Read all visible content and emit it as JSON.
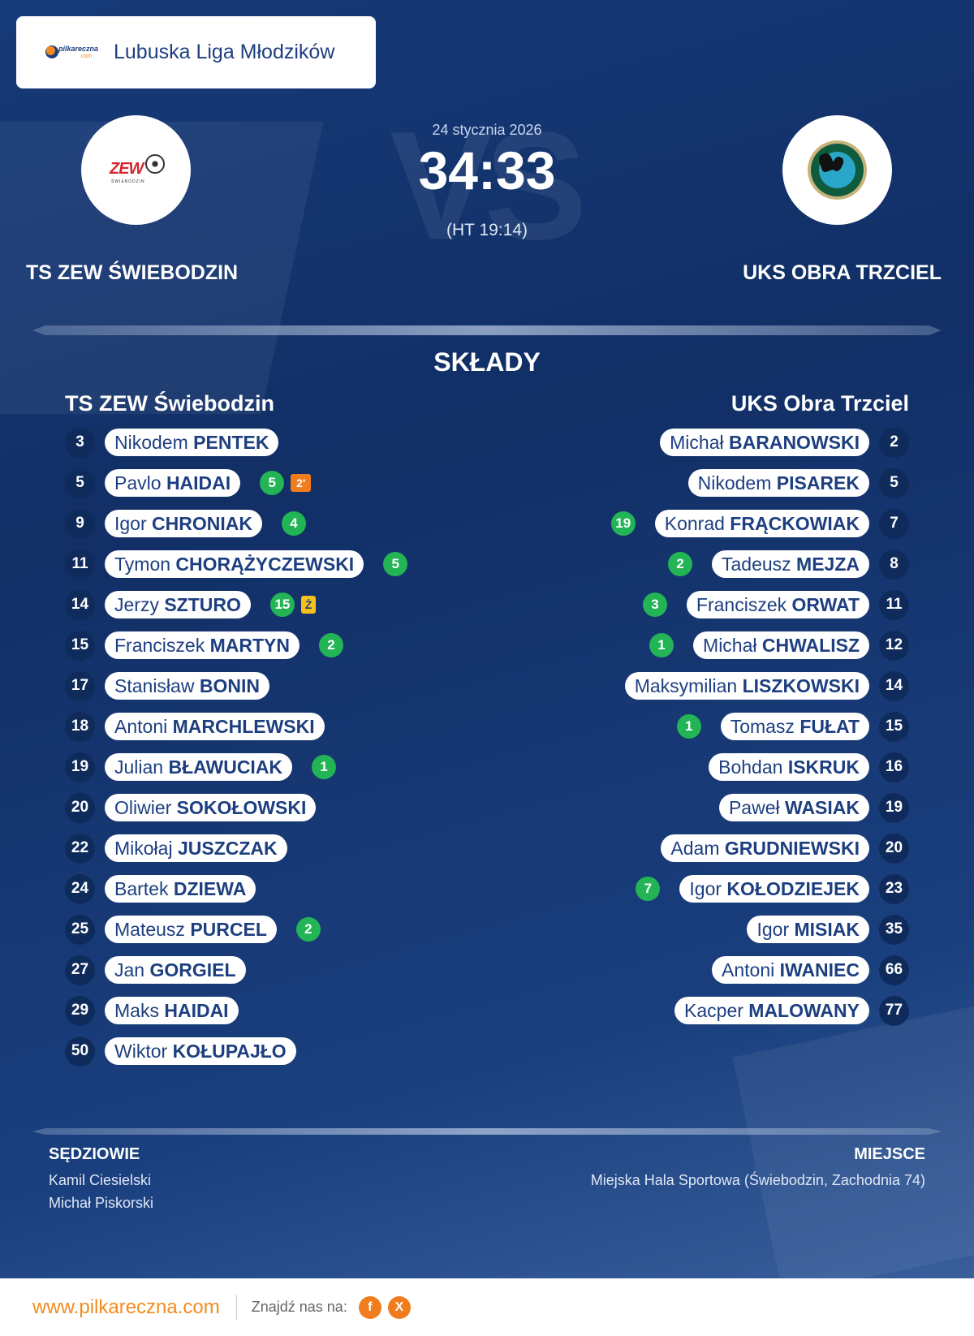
{
  "league": {
    "name": "Lubuska Liga Młodzików",
    "logo_text": "pilkareczna",
    "logo_sub": ".com"
  },
  "match": {
    "date": "24 stycznia 2026",
    "score": "34:33",
    "halftime": "(HT 19:14)",
    "vs_text": "VS"
  },
  "home": {
    "name": "TS ZEW ŚWIEBODZIN",
    "lineup_title": "TS ZEW Świebodzin",
    "crest_text": "ZEW",
    "crest_sub": "ŚWIEBODZIN",
    "players": [
      {
        "num": "3",
        "first": "Nikodem",
        "last": "PENTEK",
        "goals": "",
        "pen": ""
      },
      {
        "num": "5",
        "first": "Pavlo",
        "last": "HAIDAI",
        "goals": "5",
        "pen": "2'"
      },
      {
        "num": "9",
        "first": "Igor",
        "last": "CHRONIAK",
        "goals": "4",
        "pen": ""
      },
      {
        "num": "11",
        "first": "Tymon",
        "last": "CHORĄŻYCZEWSKI",
        "goals": "5",
        "pen": ""
      },
      {
        "num": "14",
        "first": "Jerzy",
        "last": "SZTURO",
        "goals": "15",
        "pen": "Ż"
      },
      {
        "num": "15",
        "first": "Franciszek",
        "last": "MARTYN",
        "goals": "2",
        "pen": ""
      },
      {
        "num": "17",
        "first": "Stanisław",
        "last": "BONIN",
        "goals": "",
        "pen": ""
      },
      {
        "num": "18",
        "first": "Antoni",
        "last": "MARCHLEWSKI",
        "goals": "",
        "pen": ""
      },
      {
        "num": "19",
        "first": "Julian",
        "last": "BŁAWUCIAK",
        "goals": "1",
        "pen": ""
      },
      {
        "num": "20",
        "first": "Oliwier",
        "last": "SOKOŁOWSKI",
        "goals": "",
        "pen": ""
      },
      {
        "num": "22",
        "first": "Mikołaj",
        "last": "JUSZCZAK",
        "goals": "",
        "pen": ""
      },
      {
        "num": "24",
        "first": "Bartek",
        "last": "DZIEWA",
        "goals": "",
        "pen": ""
      },
      {
        "num": "25",
        "first": "Mateusz",
        "last": "PURCEL",
        "goals": "2",
        "pen": ""
      },
      {
        "num": "27",
        "first": "Jan",
        "last": "GORGIEL",
        "goals": "",
        "pen": ""
      },
      {
        "num": "29",
        "first": "Maks",
        "last": "HAIDAI",
        "goals": "",
        "pen": ""
      },
      {
        "num": "50",
        "first": "Wiktor",
        "last": "KOŁUPAJŁO",
        "goals": "",
        "pen": ""
      }
    ]
  },
  "away": {
    "name": "UKS OBRA TRZCIEL",
    "lineup_title": "UKS Obra Trzciel",
    "players": [
      {
        "num": "2",
        "first": "Michał",
        "last": "BARANOWSKI",
        "goals": ""
      },
      {
        "num": "5",
        "first": "Nikodem",
        "last": "PISAREK",
        "goals": ""
      },
      {
        "num": "7",
        "first": "Konrad",
        "last": "FRĄCKOWIAK",
        "goals": "19"
      },
      {
        "num": "8",
        "first": "Tadeusz",
        "last": "MEJZA",
        "goals": "2"
      },
      {
        "num": "11",
        "first": "Franciszek",
        "last": "ORWAT",
        "goals": "3"
      },
      {
        "num": "12",
        "first": "Michał",
        "last": "CHWALISZ",
        "goals": "1"
      },
      {
        "num": "14",
        "first": "Maksymilian",
        "last": "LISZKOWSKI",
        "goals": ""
      },
      {
        "num": "15",
        "first": "Tomasz",
        "last": "FUŁAT",
        "goals": "1"
      },
      {
        "num": "16",
        "first": "Bohdan",
        "last": "ISKRUK",
        "goals": ""
      },
      {
        "num": "19",
        "first": "Paweł",
        "last": "WASIAK",
        "goals": ""
      },
      {
        "num": "20",
        "first": "Adam",
        "last": "GRUDNIEWSKI",
        "goals": ""
      },
      {
        "num": "23",
        "first": "Igor",
        "last": "KOŁODZIEJEK",
        "goals": "7"
      },
      {
        "num": "35",
        "first": "Igor",
        "last": "MISIAK",
        "goals": ""
      },
      {
        "num": "66",
        "first": "Antoni",
        "last": "IWANIEC",
        "goals": ""
      },
      {
        "num": "77",
        "first": "Kacper",
        "last": "MALOWANY",
        "goals": ""
      }
    ]
  },
  "lineups_title": "SKŁADY",
  "referees": {
    "title": "SĘDZIOWIE",
    "names": [
      "Kamil Ciesielski",
      "Michał Piskorski"
    ]
  },
  "venue": {
    "title": "MIEJSCE",
    "text": "Miejska Hala Sportowa (Świebodzin, Zachodnia 74)"
  },
  "footer": {
    "site": "www.pilkareczna.com",
    "find": "Znajdź nas na:",
    "social": [
      "f",
      "X"
    ]
  },
  "colors": {
    "navy": "#163a78",
    "goal_green": "#22b455",
    "accent_orange": "#f28c1e",
    "yellow_card": "#f6c21a"
  },
  "icons": {
    "facebook": "facebook-icon",
    "x": "x-icon"
  }
}
